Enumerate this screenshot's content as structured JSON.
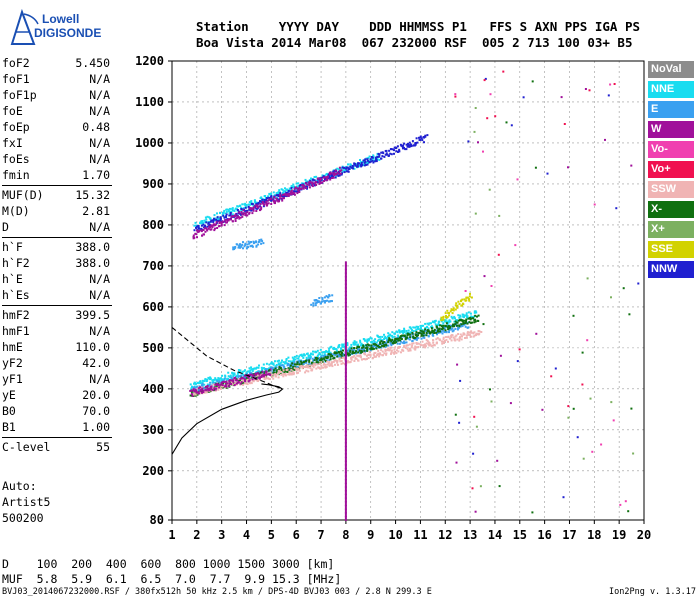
{
  "logo": {
    "line1": "Lowell",
    "line2": "DIGISONDE"
  },
  "header": {
    "line1": "Station    YYYY DAY    DDD HHMMSS P1   FFS S AXN PPS IGA PS",
    "line2": "Boa Vista 2014 Mar08  067 232000 RSF  005 2 713 100 03+ B5"
  },
  "params": [
    {
      "label": "foF2",
      "value": "5.450"
    },
    {
      "label": "foF1",
      "value": "N/A"
    },
    {
      "label": "foF1p",
      "value": "N/A"
    },
    {
      "label": "foE",
      "value": "N/A"
    },
    {
      "label": "foEp",
      "value": "0.48"
    },
    {
      "label": "fxI",
      "value": "N/A"
    },
    {
      "label": "foEs",
      "value": "N/A"
    },
    {
      "label": "fmin",
      "value": "1.70"
    },
    {
      "label": "MUF(D)",
      "value": "15.32"
    },
    {
      "label": "M(D)",
      "value": "2.81"
    },
    {
      "label": "D",
      "value": "N/A"
    },
    {
      "label": "h`F",
      "value": "388.0"
    },
    {
      "label": "h`F2",
      "value": "388.0"
    },
    {
      "label": "h`E",
      "value": "N/A"
    },
    {
      "label": "h`Es",
      "value": "N/A"
    },
    {
      "label": "hmF2",
      "value": "399.5"
    },
    {
      "label": "hmF1",
      "value": "N/A"
    },
    {
      "label": "hmE",
      "value": "110.0"
    },
    {
      "label": "yF2",
      "value": "42.0"
    },
    {
      "label": "yF1",
      "value": "N/A"
    },
    {
      "label": "yE",
      "value": "20.0"
    },
    {
      "label": "B0",
      "value": "70.0"
    },
    {
      "label": "B1",
      "value": "1.00"
    },
    {
      "label": "C-level",
      "value": "55"
    }
  ],
  "auto": {
    "line1": "Auto:",
    "line2": "Artist5",
    "line3": "500200"
  },
  "legend": [
    {
      "name": "NoVal",
      "color": "#8c8c8c"
    },
    {
      "name": "NNE",
      "color": "#19dcf0"
    },
    {
      "name": "E",
      "color": "#3aa0f0"
    },
    {
      "name": "W",
      "color": "#a0109a"
    },
    {
      "name": "Vo-",
      "color": "#f040b0"
    },
    {
      "name": "Vo+",
      "color": "#f01050"
    },
    {
      "name": "SSW",
      "color": "#f0b4b4"
    },
    {
      "name": "X-",
      "color": "#107010"
    },
    {
      "name": "X+",
      "color": "#7cb060"
    },
    {
      "name": "SSE",
      "color": "#d2d200"
    },
    {
      "name": "NNW",
      "color": "#2020d0"
    }
  ],
  "dtable": {
    "row1": "D    100  200  400  600  800 1000 1500 3000 [km]",
    "row2": "MUF  5.8  5.9  6.1  6.5  7.0  7.7  9.9 15.3 [MHz]"
  },
  "footer": "BVJ03_2014067232000.RSF / 380fx512h 50 kHz 2.5 km / DPS-4D BVJ03 003 / 2.8 N 299.3 E",
  "version": "Ion2Png v. 1.3.17",
  "chart_data": {
    "type": "scatter",
    "xlabel": "",
    "ylabel": "",
    "x_ticks": [
      1,
      2,
      3,
      4,
      5,
      6,
      7,
      8,
      9,
      10,
      11,
      12,
      13,
      14,
      15,
      16,
      17,
      18,
      19,
      20
    ],
    "y_ticks": [
      80,
      200,
      300,
      400,
      500,
      600,
      700,
      800,
      900,
      1000,
      1100,
      1200
    ],
    "xlim": [
      1,
      20
    ],
    "ylim": [
      80,
      1200
    ],
    "grid": "dashed",
    "legend_position": "right",
    "traces": [
      {
        "series": "NNE",
        "x": [
          1.7,
          13.2
        ],
        "y": [
          410,
          585
        ]
      },
      {
        "series": "E",
        "x": [
          1.8,
          12.9
        ],
        "y": [
          400,
          560
        ]
      },
      {
        "series": "X-",
        "x": [
          1.7,
          13.3
        ],
        "y": [
          390,
          575
        ]
      },
      {
        "series": "SSW",
        "x": [
          1.8,
          13.4
        ],
        "y": [
          395,
          540
        ]
      },
      {
        "series": "SSE",
        "x": [
          11.8,
          13.0
        ],
        "y": [
          575,
          630
        ]
      },
      {
        "series": "W",
        "x": [
          1.7,
          4.9
        ],
        "y": [
          392,
          442
        ]
      },
      {
        "series": "NNE",
        "x": [
          1.9,
          9.3
        ],
        "y": [
          803,
          970
        ]
      },
      {
        "series": "NNW",
        "x": [
          1.9,
          11.2
        ],
        "y": [
          790,
          1015
        ]
      },
      {
        "series": "W",
        "x": [
          1.8,
          7.8
        ],
        "y": [
          775,
          935
        ]
      },
      {
        "series": "E",
        "x": [
          3.4,
          4.6
        ],
        "y": [
          748,
          760
        ]
      },
      {
        "series": "E",
        "x": [
          6.6,
          7.4
        ],
        "y": [
          610,
          625
        ]
      }
    ],
    "profile_solid": {
      "x": [
        1.0,
        1.4,
        2.0,
        3.0,
        4.0,
        4.8,
        5.3,
        5.45,
        5.3,
        4.9,
        4.6
      ],
      "y": [
        240,
        280,
        315,
        350,
        372,
        385,
        392,
        399.5,
        405,
        410,
        412
      ]
    },
    "profile_dashed": {
      "x": [
        1.0,
        1.6,
        2.4,
        3.5,
        4.6,
        5.2,
        5.45
      ],
      "y": [
        550,
        520,
        480,
        445,
        420,
        405,
        399.5
      ]
    }
  }
}
